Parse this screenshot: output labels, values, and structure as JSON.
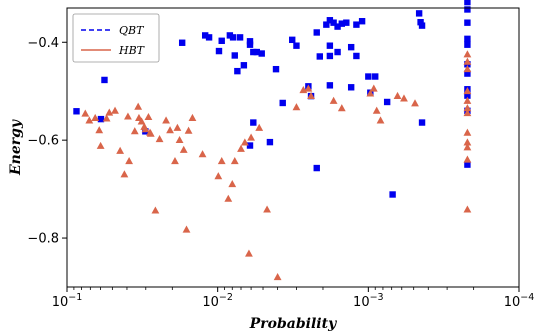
{
  "chart_data": {
    "type": "scatter",
    "title": "",
    "xlabel": "Probability",
    "ylabel": "Energy",
    "xscale": "log",
    "xaxis_reversed": true,
    "xlim": [
      0.1,
      0.0001
    ],
    "ylim": [
      -0.9,
      -0.33
    ],
    "x_ticks": [
      {
        "value": 0.1,
        "base": "10",
        "exp": "−1"
      },
      {
        "value": 0.01,
        "base": "10",
        "exp": "−2"
      },
      {
        "value": 0.001,
        "base": "10",
        "exp": "−3"
      },
      {
        "value": 0.0001,
        "base": "10",
        "exp": "−4"
      }
    ],
    "y_ticks": [
      {
        "value": -0.4,
        "label": "−0.4"
      },
      {
        "value": -0.6,
        "label": "−0.6"
      },
      {
        "value": -0.8,
        "label": "−0.8"
      }
    ],
    "grid": false,
    "legend": {
      "position": "top-left"
    },
    "series": [
      {
        "name": "QBT",
        "legend_line": "dashed",
        "color": "#0000ee",
        "marker": "square",
        "points": [
          [
            0.0865,
            -0.541
          ],
          [
            0.0595,
            -0.557
          ],
          [
            0.0564,
            -0.477
          ],
          [
            0.0302,
            -0.582
          ],
          [
            0.0172,
            -0.401
          ],
          [
            0.0121,
            -0.386
          ],
          [
            0.0114,
            -0.39
          ],
          [
            0.0098,
            -0.418
          ],
          [
            0.0094,
            -0.397
          ],
          [
            0.0083,
            -0.386
          ],
          [
            0.0079,
            -0.39
          ],
          [
            0.0077,
            -0.427
          ],
          [
            0.0074,
            -0.459
          ],
          [
            0.0071,
            -0.39
          ],
          [
            0.0067,
            -0.447
          ],
          [
            0.0061,
            -0.405
          ],
          [
            0.0061,
            -0.611
          ],
          [
            0.0061,
            -0.398
          ],
          [
            0.0058,
            -0.42
          ],
          [
            0.0058,
            -0.564
          ],
          [
            0.0055,
            -0.42
          ],
          [
            0.0051,
            -0.423
          ],
          [
            0.0045,
            -0.604
          ],
          [
            0.0041,
            -0.455
          ],
          [
            0.0037,
            -0.524
          ],
          [
            0.0032,
            -0.395
          ],
          [
            0.003,
            -0.407
          ],
          [
            0.0025,
            -0.49
          ],
          [
            0.0024,
            -0.51
          ],
          [
            0.0022,
            -0.38
          ],
          [
            0.0022,
            -0.657
          ],
          [
            0.0021,
            -0.429
          ],
          [
            0.0019,
            -0.364
          ],
          [
            0.0018,
            -0.407
          ],
          [
            0.0018,
            -0.428
          ],
          [
            0.0018,
            -0.355
          ],
          [
            0.0018,
            -0.488
          ],
          [
            0.0017,
            -0.36
          ],
          [
            0.0016,
            -0.368
          ],
          [
            0.0016,
            -0.42
          ],
          [
            0.0015,
            -0.362
          ],
          [
            0.0014,
            -0.36
          ],
          [
            0.0013,
            -0.41
          ],
          [
            0.0013,
            -0.492
          ],
          [
            0.0012,
            -0.364
          ],
          [
            0.0012,
            -0.428
          ],
          [
            0.0011,
            -0.357
          ],
          [
            0.001,
            -0.47
          ],
          [
            0.00097,
            -0.503
          ],
          [
            0.0009,
            -0.47
          ],
          [
            0.00075,
            -0.522
          ],
          [
            0.00069,
            -0.711
          ],
          [
            0.00046,
            -0.341
          ],
          [
            0.00045,
            -0.359
          ],
          [
            0.00044,
            -0.366
          ],
          [
            0.00044,
            -0.564
          ],
          [
            0.00022,
            -0.318
          ],
          [
            0.00022,
            -0.333
          ],
          [
            0.00022,
            -0.36
          ],
          [
            0.00022,
            -0.393
          ],
          [
            0.00022,
            -0.405
          ],
          [
            0.00022,
            -0.445
          ],
          [
            0.00022,
            -0.464
          ],
          [
            0.00022,
            -0.496
          ],
          [
            0.00022,
            -0.509
          ],
          [
            0.00022,
            -0.54
          ],
          [
            0.00022,
            -0.65
          ]
        ]
      },
      {
        "name": "HBT",
        "legend_line": "solid",
        "color": "#d9654a",
        "marker": "triangle",
        "points": [
          [
            0.0756,
            -0.546
          ],
          [
            0.0711,
            -0.56
          ],
          [
            0.065,
            -0.555
          ],
          [
            0.0611,
            -0.58
          ],
          [
            0.0598,
            -0.612
          ],
          [
            0.0546,
            -0.556
          ],
          [
            0.0524,
            -0.544
          ],
          [
            0.048,
            -0.54
          ],
          [
            0.0444,
            -0.622
          ],
          [
            0.0416,
            -0.67
          ],
          [
            0.0394,
            -0.552
          ],
          [
            0.0387,
            -0.643
          ],
          [
            0.0355,
            -0.582
          ],
          [
            0.0337,
            -0.532
          ],
          [
            0.0333,
            -0.555
          ],
          [
            0.032,
            -0.562
          ],
          [
            0.0307,
            -0.573
          ],
          [
            0.0301,
            -0.578
          ],
          [
            0.0288,
            -0.553
          ],
          [
            0.0281,
            -0.585
          ],
          [
            0.0278,
            -0.587
          ],
          [
            0.0259,
            -0.744
          ],
          [
            0.0243,
            -0.598
          ],
          [
            0.022,
            -0.56
          ],
          [
            0.0207,
            -0.58
          ],
          [
            0.0192,
            -0.643
          ],
          [
            0.0185,
            -0.575
          ],
          [
            0.0179,
            -0.6
          ],
          [
            0.0168,
            -0.62
          ],
          [
            0.0161,
            -0.783
          ],
          [
            0.0156,
            -0.581
          ],
          [
            0.0147,
            -0.555
          ],
          [
            0.0126,
            -0.629
          ],
          [
            0.0099,
            -0.674
          ],
          [
            0.0094,
            -0.643
          ],
          [
            0.0085,
            -0.72
          ],
          [
            0.008,
            -0.69
          ],
          [
            0.0077,
            -0.643
          ],
          [
            0.007,
            -0.618
          ],
          [
            0.0066,
            -0.605
          ],
          [
            0.0062,
            -0.832
          ],
          [
            0.006,
            -0.595
          ],
          [
            0.0053,
            -0.575
          ],
          [
            0.0047,
            -0.742
          ],
          [
            0.004,
            -0.88
          ],
          [
            0.003,
            -0.533
          ],
          [
            0.0027,
            -0.498
          ],
          [
            0.0025,
            -0.495
          ],
          [
            0.0024,
            -0.51
          ],
          [
            0.0017,
            -0.52
          ],
          [
            0.0015,
            -0.535
          ],
          [
            0.00097,
            -0.505
          ],
          [
            0.00092,
            -0.495
          ],
          [
            0.00088,
            -0.54
          ],
          [
            0.00083,
            -0.56
          ],
          [
            0.00064,
            -0.51
          ],
          [
            0.00058,
            -0.515
          ],
          [
            0.00049,
            -0.525
          ],
          [
            0.00022,
            -0.425
          ],
          [
            0.00022,
            -0.44
          ],
          [
            0.00022,
            -0.455
          ],
          [
            0.00022,
            -0.5
          ],
          [
            0.00022,
            -0.52
          ],
          [
            0.00022,
            -0.535
          ],
          [
            0.00022,
            -0.545
          ],
          [
            0.00022,
            -0.585
          ],
          [
            0.00022,
            -0.605
          ],
          [
            0.00022,
            -0.615
          ],
          [
            0.00022,
            -0.64
          ],
          [
            0.00022,
            -0.742
          ]
        ]
      }
    ]
  }
}
